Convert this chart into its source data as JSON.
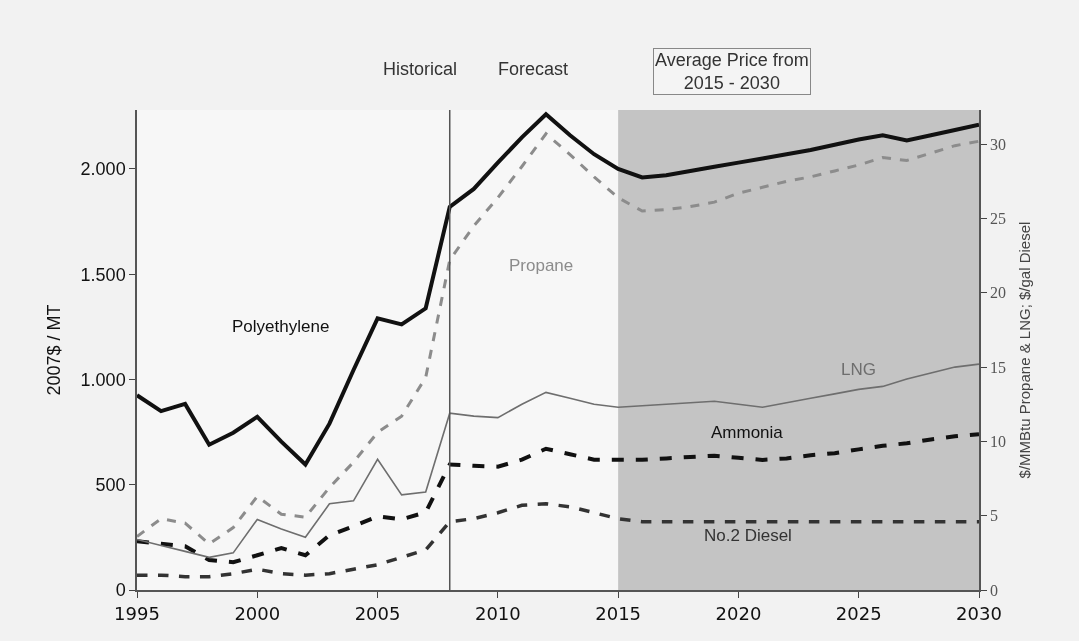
{
  "chart_data": {
    "type": "line",
    "x": [
      1995,
      1996,
      1997,
      1998,
      1999,
      2000,
      2001,
      2002,
      2003,
      2004,
      2005,
      2006,
      2007,
      2008,
      2009,
      2010,
      2011,
      2012,
      2013,
      2014,
      2015,
      2016,
      2017,
      2018,
      2019,
      2020,
      2021,
      2022,
      2023,
      2024,
      2025,
      2026,
      2027,
      2028,
      2029,
      2030
    ],
    "series": [
      {
        "name": "Polyethylene",
        "color": "#111111",
        "line_style": "solid",
        "values": [
          925,
          850,
          884,
          690,
          747,
          823,
          705,
          596,
          790,
          1045,
          1290,
          1262,
          1338,
          1820,
          1905,
          2030,
          2150,
          2260,
          2160,
          2070,
          2000,
          1960,
          1970,
          1990,
          2010,
          2030,
          2050,
          2070,
          2090,
          2115,
          2140,
          2160,
          2135,
          2160,
          2185,
          2210
        ]
      },
      {
        "name": "Propane",
        "color": "#8c8c8c",
        "line_style": "dashed",
        "axis": "y2",
        "values": [
          3.6,
          4.8,
          4.5,
          3.1,
          4.2,
          6.3,
          5.1,
          4.9,
          6.9,
          8.6,
          10.6,
          11.7,
          14.3,
          22.2,
          24.5,
          26.4,
          28.5,
          30.7,
          29.3,
          27.8,
          26.4,
          25.5,
          25.6,
          25.8,
          26.1,
          26.7,
          27.1,
          27.5,
          27.8,
          28.2,
          28.6,
          29.1,
          28.9,
          29.4,
          29.9,
          30.2
        ]
      },
      {
        "name": "LNG",
        "color": "#6e6e6e",
        "line_style": "solid",
        "axis": "y2",
        "values": [
          3.4,
          3.0,
          2.6,
          2.2,
          2.5,
          4.75,
          4.1,
          3.55,
          5.8,
          6.0,
          8.8,
          6.4,
          6.6,
          11.9,
          11.7,
          11.6,
          12.5,
          13.3,
          12.9,
          12.5,
          12.3,
          12.4,
          12.5,
          12.6,
          12.7,
          12.5,
          12.3,
          12.6,
          12.9,
          13.2,
          13.5,
          13.7,
          14.2,
          14.6,
          15.0,
          15.2
        ]
      },
      {
        "name": "Ammonia",
        "color": "#111111",
        "line_style": "dashed",
        "values": [
          232,
          220,
          208,
          142,
          132,
          165,
          199,
          165,
          260,
          303,
          350,
          336,
          369,
          596,
          590,
          586,
          619,
          671,
          645,
          619,
          619,
          619,
          625,
          632,
          638,
          628,
          618,
          625,
          640,
          650,
          668,
          685,
          697,
          715,
          730,
          740
        ]
      },
      {
        "name": "No.2 Diesel",
        "color": "#333333",
        "line_style": "dashed",
        "axis": "y2",
        "values": [
          1.0,
          1.0,
          0.9,
          0.9,
          1.1,
          1.4,
          1.1,
          1.0,
          1.1,
          1.4,
          1.7,
          2.2,
          2.7,
          4.6,
          4.8,
          5.2,
          5.7,
          5.8,
          5.6,
          5.2,
          4.8,
          4.6,
          4.6,
          4.6,
          4.6,
          4.6,
          4.6,
          4.6,
          4.6,
          4.6,
          4.6,
          4.6,
          4.6,
          4.6,
          4.6,
          4.6
        ]
      }
    ],
    "ylabel": "2007$ / MT",
    "y2label": "$/MMBtu Propane & LNG; $/gal Diesel",
    "xlim": [
      1995,
      2030
    ],
    "xticks": [
      1995,
      2000,
      2005,
      2010,
      2015,
      2020,
      2025,
      2030
    ],
    "ylim": [
      0,
      2280
    ],
    "yticks": [
      0,
      {
        "value": 500,
        "label": "500"
      },
      {
        "value": 1000,
        "label": "1.000"
      },
      {
        "value": 1500,
        "label": "1.500"
      },
      {
        "value": 2000,
        "label": "2.000"
      }
    ],
    "y2lim": [
      0,
      32.3
    ],
    "y2ticks": [
      0,
      5,
      10,
      15,
      20,
      25,
      30
    ],
    "ref_lines": [
      {
        "axis": "x",
        "value": 2008,
        "color": "#555555"
      }
    ],
    "bands": [
      {
        "axis": "x",
        "from": 2015,
        "to": 2030,
        "color": "#c4c4c4"
      }
    ],
    "annotations": [
      "Historical",
      "Forecast",
      "Average Price from\n2015 - 2030"
    ],
    "grid": false,
    "legend": false,
    "marker": "none"
  }
}
